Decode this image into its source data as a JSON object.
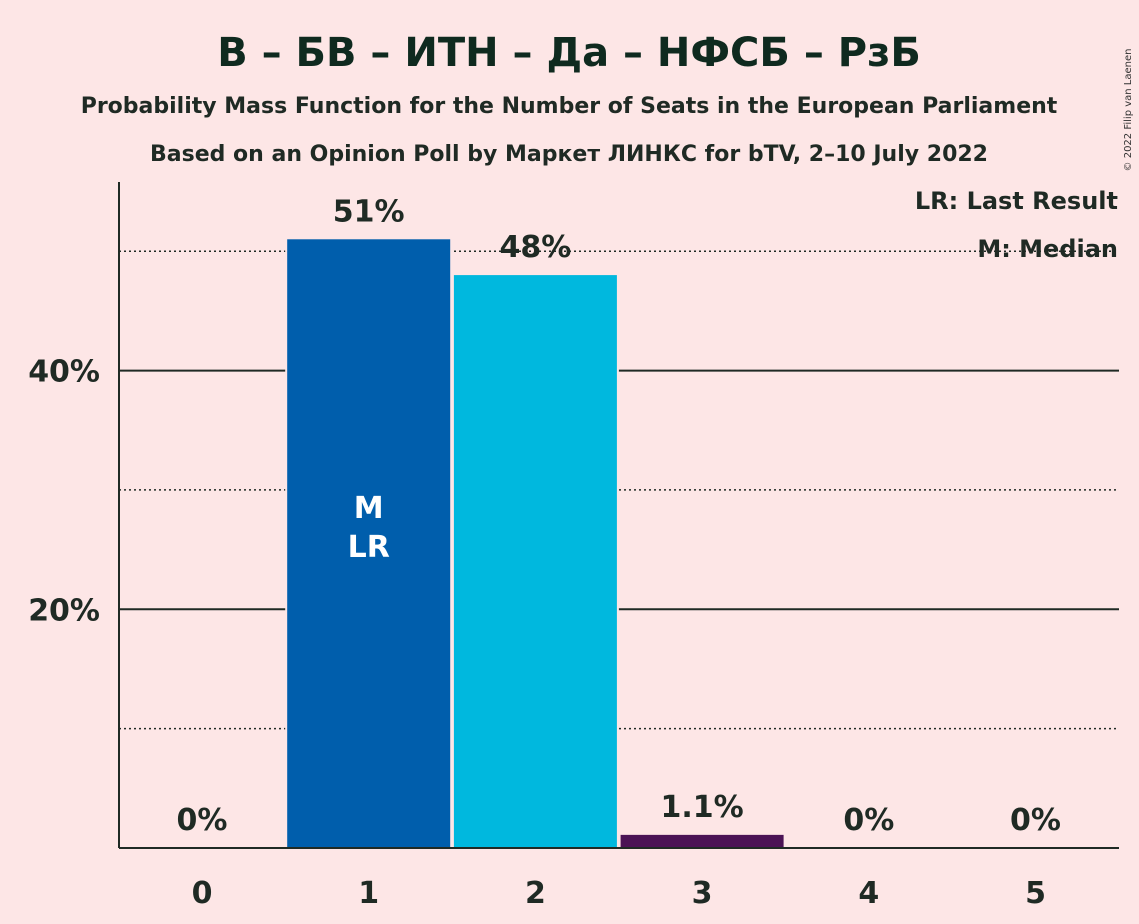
{
  "chart_data": {
    "type": "bar",
    "title": "В – БВ – ИТН – Да – НФСБ – РзБ",
    "subtitle_1": "Probability Mass Function for the Number of Seats in the European Parliament",
    "subtitle_2": "Based on an Opinion Poll by Маркет ЛИНКС for bTV, 2–10 July 2022",
    "categories": [
      "0",
      "1",
      "2",
      "3",
      "4",
      "5"
    ],
    "values": [
      0,
      51,
      48,
      1.1,
      0,
      0
    ],
    "value_labels": [
      "0%",
      "51%",
      "48%",
      "1.1%",
      "0%",
      "0%"
    ],
    "bar_colors": [
      "#005eac",
      "#005eac",
      "#00b8de",
      "#4b1355",
      "#005eac",
      "#005eac"
    ],
    "ylim": [
      0,
      55.8
    ],
    "y_ticks_labeled": [
      {
        "value": 20,
        "label": "20%"
      },
      {
        "value": 40,
        "label": "40%"
      }
    ],
    "y_gridlines_solid": [
      20,
      40
    ],
    "y_gridlines_dotted": [
      10,
      30,
      50
    ],
    "median_bar_index": 1,
    "last_result_bar_index": 1,
    "in_bar_labels": [
      "M",
      "LR"
    ],
    "legend": [
      "LR: Last Result",
      "M: Median"
    ],
    "legend_position": "top-right",
    "copyright": "© 2022 Filip van Laenen",
    "colors": {
      "background": "#fde6e6",
      "text": "#1f2a24",
      "axis": "#1f2a24"
    }
  }
}
